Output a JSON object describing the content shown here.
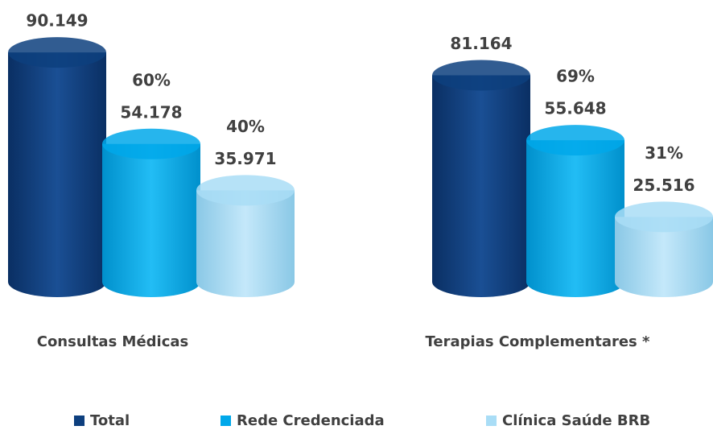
{
  "chart_data": {
    "type": "cylinder",
    "categories": [
      "Consultas Médicas",
      "Terapias Complementares *"
    ],
    "series": [
      {
        "name": "Total",
        "color": "#0d3f7e",
        "values": [
          90149,
          81164
        ],
        "value_labels": [
          "90.149",
          "81.164"
        ]
      },
      {
        "name": "Rede Credenciada",
        "color": "#00a8ea",
        "values": [
          54178,
          55648
        ],
        "value_labels": [
          "54.178",
          "55.648"
        ],
        "percent_labels": [
          "60%",
          "69%"
        ]
      },
      {
        "name": "Clínica Saúde BRB",
        "color": "#a9ddf6",
        "values": [
          35971,
          25516
        ],
        "value_labels": [
          "35.971",
          "25.516"
        ],
        "percent_labels": [
          "40%",
          "31%"
        ]
      }
    ]
  }
}
